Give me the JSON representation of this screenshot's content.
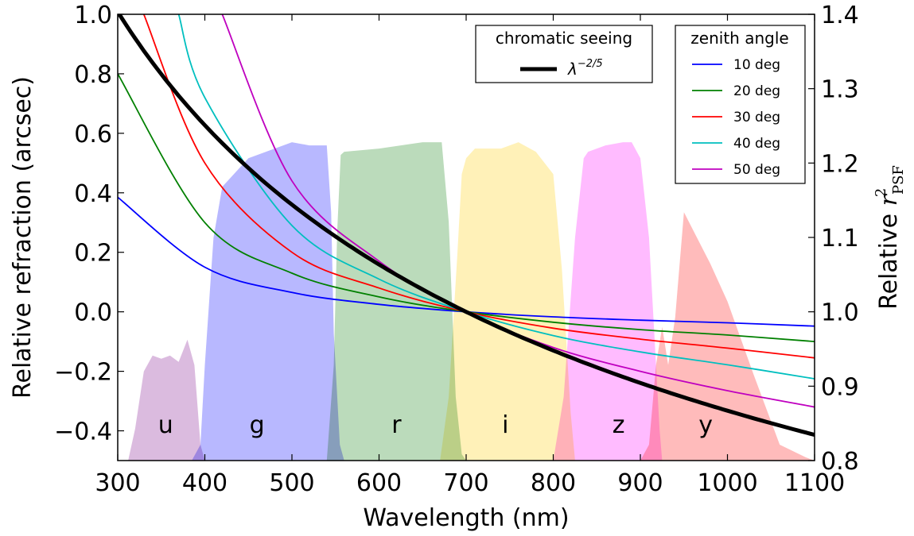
{
  "chart_data": {
    "type": "line",
    "xlabel": "Wavelength (nm)",
    "ylabel_left": "Relative refraction (arcsec)",
    "ylabel_right_prefix": "Relative ",
    "ylabel_right_symbol": "r",
    "ylabel_right_sup": "2",
    "ylabel_right_sub": "PSF",
    "xlim": [
      300,
      1100
    ],
    "ylim_left": [
      -0.5,
      1.0
    ],
    "ylim_right": [
      0.8,
      1.4
    ],
    "x_ticks": [
      "300",
      "400",
      "500",
      "600",
      "700",
      "800",
      "900",
      "1000",
      "1100"
    ],
    "x_tick_values": [
      300,
      400,
      500,
      600,
      700,
      800,
      900,
      1000,
      1100
    ],
    "y_left_ticks": [
      "1.0",
      "0.8",
      "0.6",
      "0.4",
      "0.2",
      "0.0",
      "−0.2",
      "−0.4"
    ],
    "y_left_tick_values": [
      1.0,
      0.8,
      0.6,
      0.4,
      0.2,
      0.0,
      -0.2,
      -0.4
    ],
    "y_right_ticks": [
      "1.4",
      "1.3",
      "1.2",
      "1.1",
      "1.0",
      "0.9",
      "0.8"
    ],
    "y_right_tick_values": [
      1.4,
      1.3,
      1.2,
      1.1,
      1.0,
      0.9,
      0.8
    ],
    "grid": false,
    "reference_wavelength": 700,
    "refraction_series": [
      {
        "name": "10 deg",
        "color": "#0000ff",
        "values_at": {
          "300": 0.385,
          "400": 0.15,
          "500": 0.065,
          "600": 0.025,
          "700": 0.0,
          "800": -0.017,
          "900": -0.028,
          "1000": -0.037,
          "1100": -0.048
        }
      },
      {
        "name": "20 deg",
        "color": "#008000",
        "values_at": {
          "300": 0.8,
          "400": 0.3,
          "500": 0.13,
          "600": 0.05,
          "700": 0.0,
          "800": -0.035,
          "900": -0.06,
          "1000": -0.078,
          "1100": -0.1
        }
      },
      {
        "name": "30 deg",
        "color": "#ff0000",
        "values_at": {
          "330": 1.0,
          "400": 0.5,
          "500": 0.2,
          "600": 0.08,
          "700": 0.0,
          "800": -0.055,
          "900": -0.092,
          "1000": -0.122,
          "1100": -0.155
        }
      },
      {
        "name": "40 deg",
        "color": "#00bfbf",
        "values_at": {
          "370": 1.0,
          "400": 0.72,
          "500": 0.29,
          "600": 0.11,
          "700": 0.0,
          "800": -0.08,
          "900": -0.135,
          "1000": -0.178,
          "1100": -0.225
        }
      },
      {
        "name": "50 deg",
        "color": "#bf00bf",
        "values_at": {
          "420": 1.0,
          "500": 0.44,
          "600": 0.17,
          "700": 0.0,
          "800": -0.12,
          "900": -0.2,
          "1000": -0.265,
          "1100": -0.32
        }
      }
    ],
    "seeing_series": {
      "name": "λ^(-2/5)",
      "color": "#000000",
      "exponent": -0.4,
      "reference_wavelength": 700
    },
    "filter_bands": [
      {
        "name": "u",
        "color": "#d7b4dc",
        "label_x": 355,
        "wavelengths": [
          312,
          320,
          330,
          340,
          350,
          360,
          370,
          380,
          388,
          395,
          400
        ],
        "throughput": [
          0.0,
          0.1,
          0.28,
          0.33,
          0.32,
          0.33,
          0.31,
          0.38,
          0.3,
          0.05,
          0.0
        ]
      },
      {
        "name": "g",
        "color": "#b0b0ff",
        "label_x": 460,
        "wavelengths": [
          385,
          395,
          400,
          410,
          420,
          450,
          500,
          520,
          540,
          545,
          548,
          555,
          560
        ],
        "throughput": [
          0.0,
          0.05,
          0.3,
          0.7,
          0.86,
          0.95,
          1.0,
          0.99,
          0.99,
          0.78,
          0.4,
          0.05,
          0.0
        ]
      },
      {
        "name": "r",
        "color": "#b4d7b4",
        "label_x": 620,
        "wavelengths": [
          540,
          548,
          552,
          556,
          560,
          600,
          650,
          672,
          680,
          688,
          695,
          700
        ],
        "throughput": [
          0.0,
          0.3,
          0.72,
          0.96,
          0.97,
          0.98,
          1.0,
          1.0,
          0.75,
          0.2,
          0.02,
          0.0
        ]
      },
      {
        "name": "i",
        "color": "#fff0b0",
        "label_x": 745,
        "wavelengths": [
          670,
          680,
          690,
          695,
          700,
          710,
          740,
          760,
          780,
          800,
          810,
          820,
          825
        ],
        "throughput": [
          0.0,
          0.2,
          0.65,
          0.9,
          0.95,
          0.98,
          0.98,
          1.0,
          0.97,
          0.9,
          0.6,
          0.15,
          0.0
        ]
      },
      {
        "name": "z",
        "color": "#ffb4ff",
        "label_x": 875,
        "wavelengths": [
          800,
          812,
          825,
          835,
          840,
          860,
          880,
          890,
          900,
          910,
          918,
          922,
          925
        ],
        "throughput": [
          0.0,
          0.2,
          0.7,
          0.95,
          0.97,
          0.99,
          1.0,
          1.0,
          0.95,
          0.7,
          0.3,
          0.1,
          0.0
        ]
      },
      {
        "name": "y",
        "color": "#ffb4b4",
        "label_x": 975,
        "wavelengths": [
          900,
          910,
          918,
          925,
          932,
          940,
          950,
          965,
          980,
          1000,
          1030,
          1060,
          1090,
          1100
        ],
        "throughput": [
          0.0,
          0.05,
          0.3,
          0.42,
          0.3,
          0.45,
          0.78,
          0.7,
          0.62,
          0.5,
          0.27,
          0.05,
          0.01,
          0.0
        ]
      }
    ],
    "legend_left": {
      "title": "chromatic seeing",
      "entry_label": "λ",
      "entry_sup": "−2/5",
      "placement": "top-right"
    },
    "legend_right": {
      "title": "zenith angle",
      "placement": "top-right",
      "entries": [
        "10 deg",
        "20 deg",
        "30 deg",
        "40 deg",
        "50 deg"
      ]
    }
  }
}
